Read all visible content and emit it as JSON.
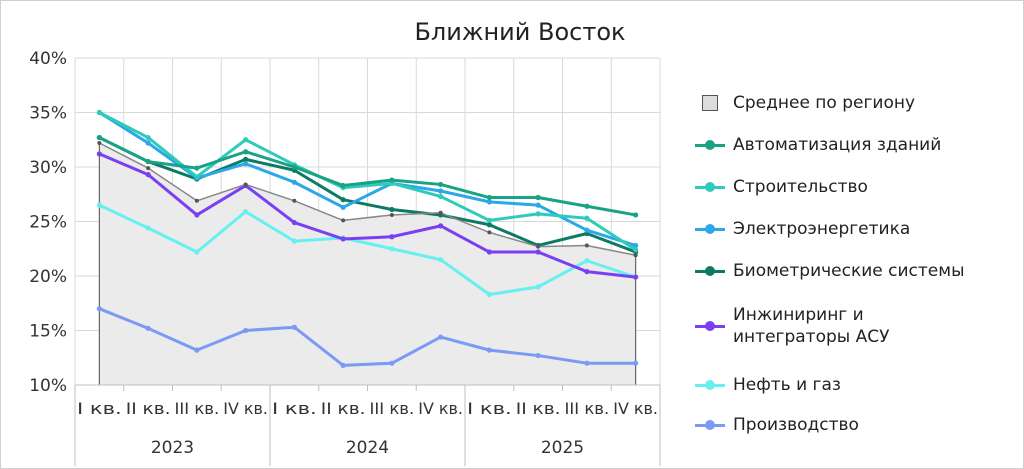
{
  "chart_data": {
    "type": "line",
    "title": "Ближний Восток",
    "ylim": [
      10,
      40
    ],
    "yticks": [
      "10%",
      "15%",
      "20%",
      "25%",
      "30%",
      "35%",
      "40%"
    ],
    "quarters": [
      "I кв.",
      "II кв.",
      "III кв.",
      "IV кв.",
      "I кв.",
      "II кв.",
      "III кв.",
      "IV кв.",
      "I кв.",
      "II кв.",
      "III кв.",
      "IV кв."
    ],
    "years": [
      "2023",
      "2024",
      "2025"
    ],
    "grid": true,
    "legend_position": "right",
    "series": [
      {
        "name": "Среднее по региону",
        "kind": "area",
        "color": "#888888",
        "fill": "#ebebeb",
        "values": [
          32.2,
          29.9,
          26.9,
          28.4,
          26.9,
          25.1,
          25.6,
          25.8,
          24.0,
          22.7,
          22.8,
          21.9
        ]
      },
      {
        "name": "Автоматизация зданий",
        "color": "#18a385",
        "values": [
          32.7,
          30.5,
          29.9,
          31.4,
          30.0,
          28.3,
          28.8,
          28.4,
          27.2,
          27.2,
          26.4,
          25.6
        ]
      },
      {
        "name": "Строительство",
        "color": "#2ecbbb",
        "values": [
          35.0,
          32.7,
          29.1,
          32.5,
          30.2,
          28.1,
          28.5,
          27.3,
          25.1,
          25.7,
          25.3,
          22.4
        ]
      },
      {
        "name": "Электроэнергетика",
        "color": "#2aa8e8",
        "values": [
          35.0,
          32.2,
          29.0,
          30.3,
          28.6,
          26.3,
          28.5,
          27.8,
          26.8,
          26.5,
          24.2,
          22.8
        ]
      },
      {
        "name": "Биометрические системы",
        "color": "#0e7a66",
        "values": [
          32.7,
          30.5,
          28.9,
          30.7,
          29.7,
          27.0,
          26.1,
          25.6,
          24.7,
          22.8,
          23.9,
          22.2
        ]
      },
      {
        "name": "Инжиниринг и интеграторы АСУ",
        "color": "#7b3ff2",
        "values": [
          31.2,
          29.3,
          25.6,
          28.3,
          24.9,
          23.4,
          23.6,
          24.6,
          22.2,
          22.2,
          20.4,
          19.9
        ]
      },
      {
        "name": "Нефть и газ",
        "color": "#66f0f0",
        "values": [
          26.5,
          24.4,
          22.2,
          25.9,
          23.2,
          23.5,
          22.5,
          21.5,
          18.3,
          19.0,
          21.4,
          19.9
        ]
      },
      {
        "name": "Производство",
        "color": "#7a9af5",
        "values": [
          17.0,
          15.2,
          13.2,
          15.0,
          15.3,
          11.8,
          12.0,
          14.4,
          13.2,
          12.7,
          12.0,
          12.0
        ]
      }
    ]
  }
}
